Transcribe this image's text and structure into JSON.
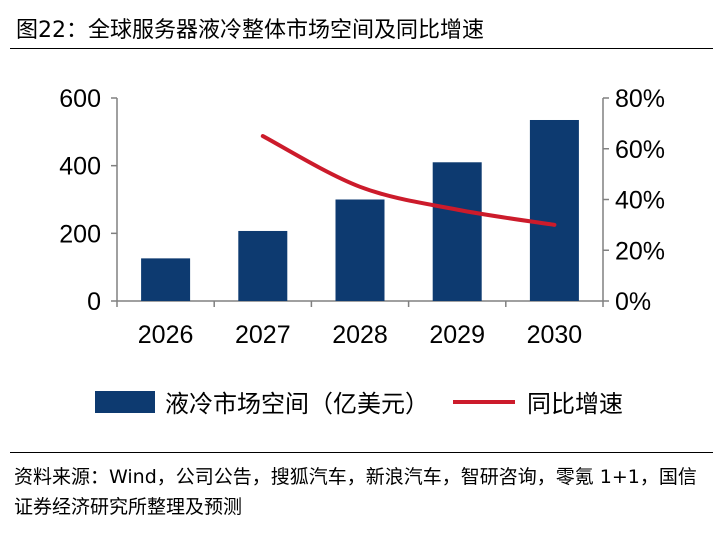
{
  "title": "图22：全球服务器液冷整体市场空间及同比增速",
  "source": "资料来源：Wind，公司公告，搜狐汽车，新浪汽车，智研咨询，零氪 1+1，国信证券经济研究所整理及预测",
  "colors": {
    "bar": "#0d3a70",
    "line": "#cc1b2b",
    "axis": "#808080"
  },
  "chart_data": {
    "type": "bar+line",
    "categories": [
      "2026",
      "2027",
      "2028",
      "2029",
      "2030"
    ],
    "series": [
      {
        "name": "液冷市场空间（亿美元）",
        "type": "bar",
        "axis": "left",
        "values": [
          126,
          207,
          300,
          410,
          535
        ]
      },
      {
        "name": "同比增速",
        "type": "line",
        "axis": "right",
        "values": [
          null,
          0.65,
          0.45,
          0.36,
          0.3
        ]
      }
    ],
    "left_axis": {
      "ylim": [
        0,
        600
      ],
      "ticks": [
        0,
        200,
        400,
        600
      ],
      "tick_labels": [
        "0",
        "200",
        "400",
        "600"
      ]
    },
    "right_axis": {
      "ylim": [
        0,
        0.8
      ],
      "ticks": [
        0,
        0.2,
        0.4,
        0.6,
        0.8
      ],
      "tick_labels": [
        "0%",
        "20%",
        "40%",
        "60%",
        "80%"
      ]
    },
    "legend_position": "bottom",
    "grid": false
  }
}
